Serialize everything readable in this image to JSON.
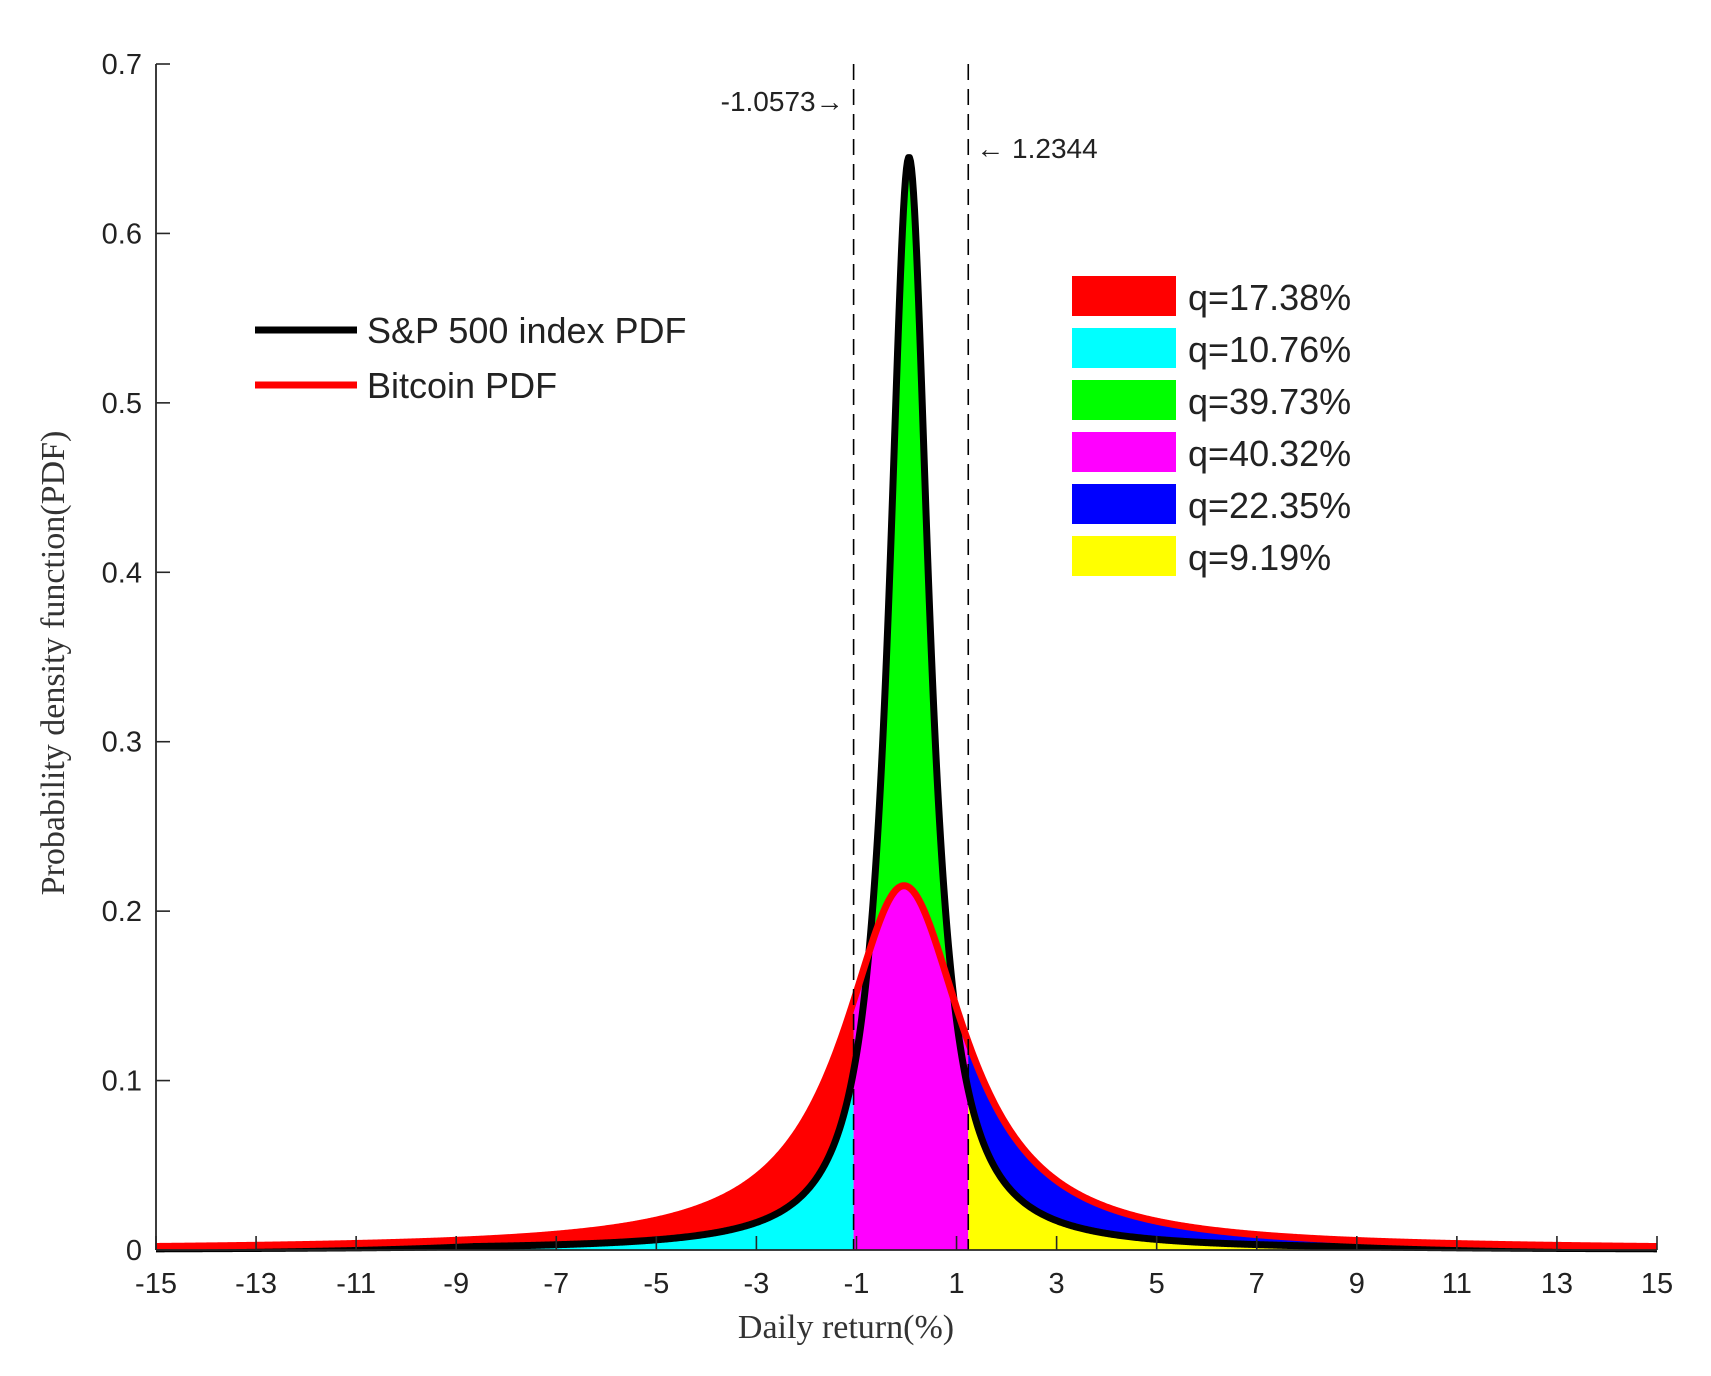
{
  "chart_data": {
    "type": "area",
    "title": "",
    "xlabel": "Daily return(%)",
    "ylabel": "Probability density function(PDF)",
    "xlim": [
      -15,
      15
    ],
    "ylim": [
      0,
      0.7
    ],
    "xticks": [
      -15,
      -13,
      -11,
      -9,
      -7,
      -5,
      -3,
      -1,
      1,
      3,
      5,
      7,
      9,
      11,
      13,
      15
    ],
    "yticks": [
      0,
      0.1,
      0.2,
      0.3,
      0.4,
      0.5,
      0.6,
      0.7
    ],
    "xtick_labels": [
      "-15",
      "-13",
      "-11",
      "-9",
      "-7",
      "-5",
      "-3",
      "-1",
      "1",
      "3",
      "5",
      "7",
      "9",
      "11",
      "13",
      "15"
    ],
    "ytick_labels": [
      "0",
      "0.1",
      "0.2",
      "0.3",
      "0.4",
      "0.5",
      "0.6",
      "0.7"
    ],
    "series": [
      {
        "name": "S&P 500 index PDF",
        "color": "#000000",
        "shape": "Cauchy-like peak",
        "location": 0.05,
        "scale": 0.49,
        "peak": 0.645
      },
      {
        "name": "Bitcoin PDF",
        "color": "#ff0000",
        "shape": "Cauchy-like peak",
        "location": -0.05,
        "scale": 1.48,
        "peak": 0.215
      }
    ],
    "vertical_lines": [
      {
        "x": -1.0573,
        "label": "-1.0573→",
        "style": "dashed"
      },
      {
        "x": 1.2344,
        "label": "← 1.2344",
        "style": "dashed"
      }
    ],
    "regions": [
      {
        "label": "q=17.38%",
        "color": "#ff0000",
        "x_range": [
          -15,
          -1.0573
        ],
        "between": "Bitcoin PDF and S&P 500 index PDF"
      },
      {
        "label": "q=10.76%",
        "color": "#00ffff",
        "x_range": [
          -15,
          -1.0573
        ],
        "between": "S&P 500 index PDF and axis"
      },
      {
        "label": "q=39.73%",
        "color": "#00ff00",
        "x_range": [
          -1.0573,
          1.2344
        ],
        "between": "S&P 500 index PDF and Bitcoin PDF"
      },
      {
        "label": "q=40.32%",
        "color": "#ff00ff",
        "x_range": [
          -1.0573,
          1.2344
        ],
        "between": "Bitcoin PDF and axis"
      },
      {
        "label": "q=22.35%",
        "color": "#0000ff",
        "x_range": [
          1.2344,
          15
        ],
        "between": "Bitcoin PDF and S&P 500 index PDF"
      },
      {
        "label": "q=9.19%",
        "color": "#ffff00",
        "x_range": [
          1.2344,
          15
        ],
        "between": "S&P 500 index PDF and axis"
      }
    ],
    "line_legend_position": "upper-left",
    "region_legend_position": "upper-right"
  }
}
